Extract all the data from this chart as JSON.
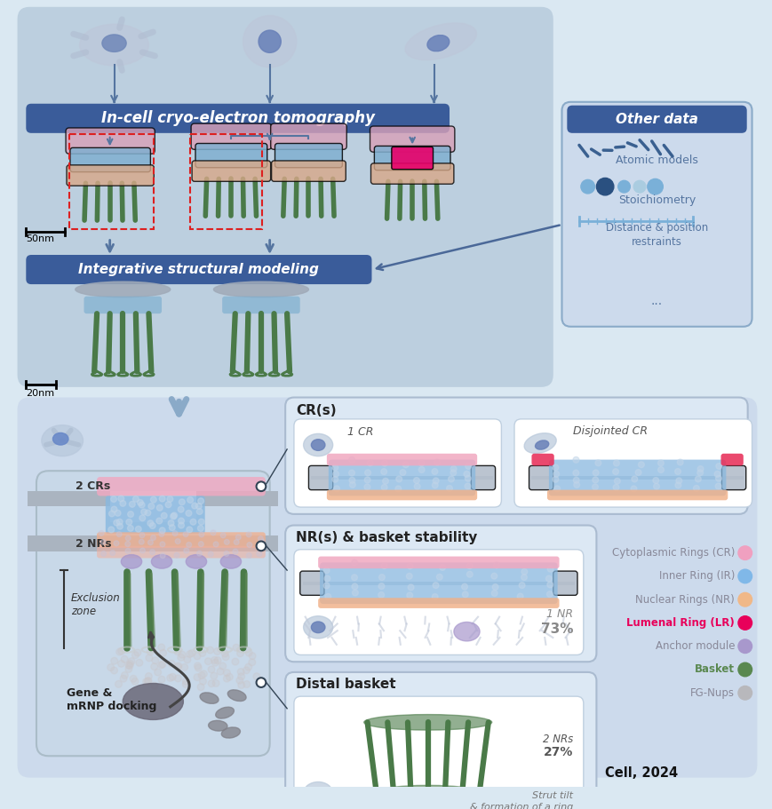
{
  "citation": "Cell, 2024",
  "bg_color": "#dae8f2",
  "top_panel_bg": "#c2d4e8",
  "bottom_panel_bg": "#d0dff0",
  "dark_blue_banner": "#3a5c9a",
  "other_data_bg": "#d8e6f4",
  "white": "#ffffff",
  "legend_items": [
    {
      "label": "Cytoplasmic Rings (CR)",
      "color": "#f0a0c0",
      "bold": false
    },
    {
      "label": "Inner Ring (IR)",
      "color": "#80b8e8",
      "bold": false
    },
    {
      "label": "Nuclear Rings (NR)",
      "color": "#f0b888",
      "bold": false
    },
    {
      "label": "Lumenal Ring (LR)",
      "color": "#e8005a",
      "bold": true
    },
    {
      "label": "Anchor module",
      "color": "#a898cc",
      "bold": false
    },
    {
      "label": "Basket",
      "color": "#5a8850",
      "bold": true
    },
    {
      "label": "FG-Nups",
      "color": "#b8b8bc",
      "bold": false
    }
  ],
  "top_banner_text": "In-cell cryo-electron tomography",
  "other_data_text": "Other data",
  "other_data_items": [
    "Atomic models",
    "Stoichiometry",
    "Distance & position\nrestraints",
    "..."
  ],
  "mid_banner_text": "Integrative structural modeling",
  "scale_bar_50nm": "50nm",
  "scale_bar_20nm": "20nm",
  "cr_panel_title": "CR(s)",
  "cr_label_1": "1 CR",
  "cr_label_2": "Disjointed CR",
  "nr_panel_title": "NR(s) & basket stability",
  "nr_label_1": "1 NR",
  "nr_label_2": "73%",
  "distal_panel_title": "Distal basket",
  "distal_label_1": "2 NRs",
  "distal_label_2": "27%",
  "distal_label_3": "Strut tilt\n& formation of a ring",
  "main_labels": {
    "crs": "2 CRs",
    "nrs": "2 NRs",
    "excl": "Exclusion\nzone",
    "gene": "Gene &\nmRNP docking"
  }
}
